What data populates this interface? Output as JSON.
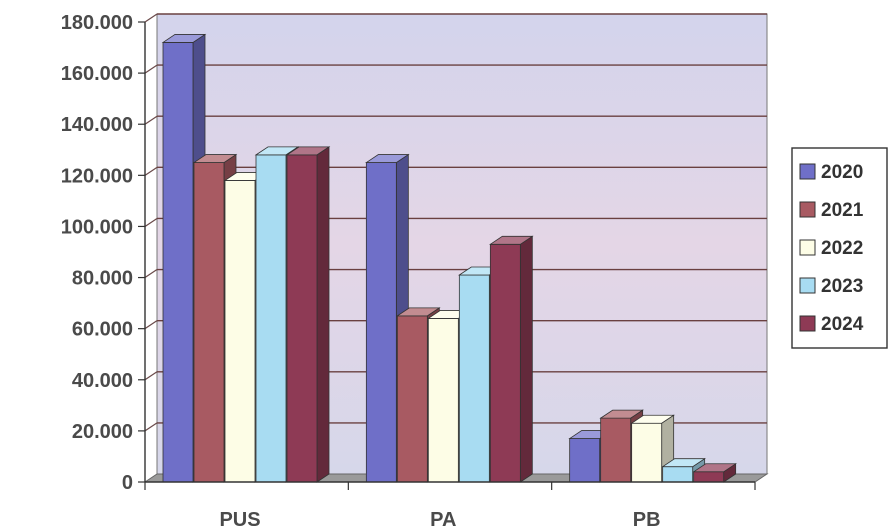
{
  "chart_data": {
    "type": "bar",
    "categories": [
      "PUS",
      "PA",
      "PB"
    ],
    "series": [
      {
        "name": "2020",
        "values": [
          172000,
          125000,
          17000
        ]
      },
      {
        "name": "2021",
        "values": [
          125000,
          65000,
          25000
        ]
      },
      {
        "name": "2022",
        "values": [
          118000,
          64000,
          23000
        ]
      },
      {
        "name": "2023",
        "values": [
          128000,
          81000,
          6000
        ]
      },
      {
        "name": "2024",
        "values": [
          128000,
          93000,
          4000
        ]
      }
    ],
    "y_ticks": [
      "0",
      "20.000",
      "40.000",
      "60.000",
      "80.000",
      "100.000",
      "120.000",
      "140.000",
      "160.000",
      "180.000"
    ],
    "ylim": [
      0,
      180000
    ],
    "title": "",
    "xlabel": "",
    "ylabel": "",
    "grid": true,
    "legend_position": "right",
    "colors": {
      "2020": "#6f6fc8",
      "2021": "#a85a62",
      "2022": "#fdfde6",
      "2023": "#a8dcf2",
      "2024": "#8e3a55"
    }
  }
}
